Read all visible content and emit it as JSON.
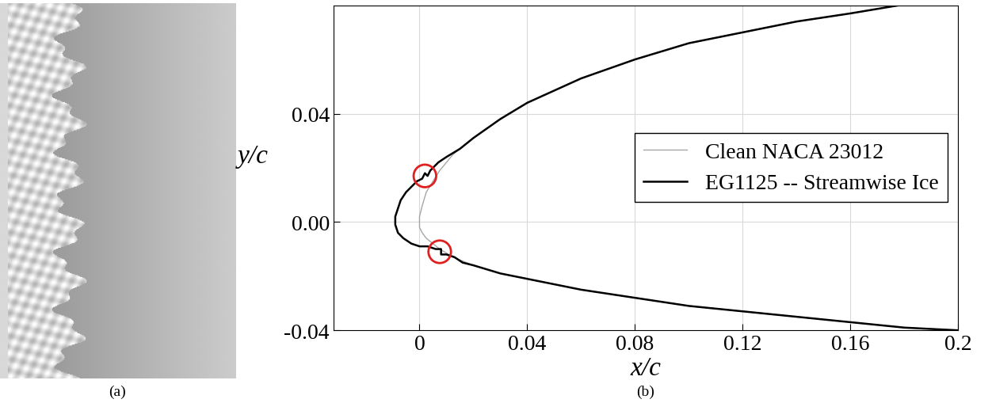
{
  "chart_data": {
    "type": "line",
    "x_label": "x/c",
    "y_label": "y/c",
    "annotations": [
      "(a)",
      "(b)"
    ],
    "xlim": [
      -0.032,
      0.2
    ],
    "ylim": [
      -0.04,
      0.08
    ],
    "xticks": [
      0,
      0.04,
      0.08,
      0.12,
      0.16,
      0.2
    ],
    "yticks": [
      {
        "value": -0.04,
        "label": "-0.04"
      },
      {
        "value": 0,
        "label": "0.00"
      },
      {
        "value": 0.04,
        "label": "0.04"
      }
    ],
    "grid": true,
    "legend": "center right",
    "series": [
      {
        "name": "Clean NACA 23012",
        "color": "#a6a6a6",
        "line_style": "solid",
        "x": [
          0.178,
          0.16,
          0.14,
          0.12,
          0.1,
          0.08,
          0.06,
          0.04,
          0.03,
          0.02,
          0.0125,
          0.0075,
          0.005,
          0.0025,
          0.001,
          0.0,
          0.0,
          0.001,
          0.0025,
          0.005,
          0.0075,
          0.0125,
          0.02,
          0.03,
          0.04,
          0.06,
          0.08,
          0.1,
          0.12,
          0.14,
          0.16,
          0.18,
          0.2
        ],
        "values": [
          0.08,
          0.077,
          0.074,
          0.07,
          0.066,
          0.06,
          0.053,
          0.044,
          0.038,
          0.031,
          0.025,
          0.019,
          0.015,
          0.011,
          0.006,
          0.002,
          -0.002,
          -0.004,
          -0.006,
          -0.008,
          -0.01,
          -0.013,
          -0.016,
          -0.019,
          -0.021,
          -0.025,
          -0.028,
          -0.031,
          -0.033,
          -0.035,
          -0.037,
          -0.039,
          -0.04
        ]
      },
      {
        "name": "EG1125 -- Streamwise Ice",
        "color": "#000000",
        "line_style": "solid",
        "x": [
          0.178,
          0.16,
          0.14,
          0.12,
          0.1,
          0.08,
          0.06,
          0.04,
          0.03,
          0.02,
          0.015,
          0.01,
          0.007,
          0.004,
          0.003,
          0.002,
          0.001,
          -0.001,
          -0.003,
          -0.005,
          -0.007,
          -0.008,
          -0.009,
          -0.009,
          -0.008,
          -0.006,
          -0.003,
          0.0,
          0.003,
          0.006,
          0.008,
          0.008,
          0.01,
          0.013,
          0.016,
          0.02,
          0.03,
          0.04,
          0.06,
          0.08,
          0.1,
          0.12,
          0.14,
          0.16,
          0.18,
          0.2
        ],
        "values": [
          0.08,
          0.077,
          0.074,
          0.07,
          0.066,
          0.06,
          0.053,
          0.044,
          0.038,
          0.031,
          0.027,
          0.024,
          0.022,
          0.019,
          0.017,
          0.018,
          0.016,
          0.015,
          0.013,
          0.011,
          0.008,
          0.005,
          0.002,
          -0.001,
          -0.004,
          -0.006,
          -0.008,
          -0.009,
          -0.009,
          -0.01,
          -0.01,
          -0.012,
          -0.012,
          -0.013,
          -0.015,
          -0.016,
          -0.019,
          -0.021,
          -0.025,
          -0.028,
          -0.031,
          -0.033,
          -0.035,
          -0.037,
          -0.039,
          -0.04
        ]
      }
    ],
    "highlights": {
      "x": [
        0.002,
        0.0075
      ],
      "y": [
        0.017,
        -0.011
      ],
      "color": "#e02020"
    }
  }
}
